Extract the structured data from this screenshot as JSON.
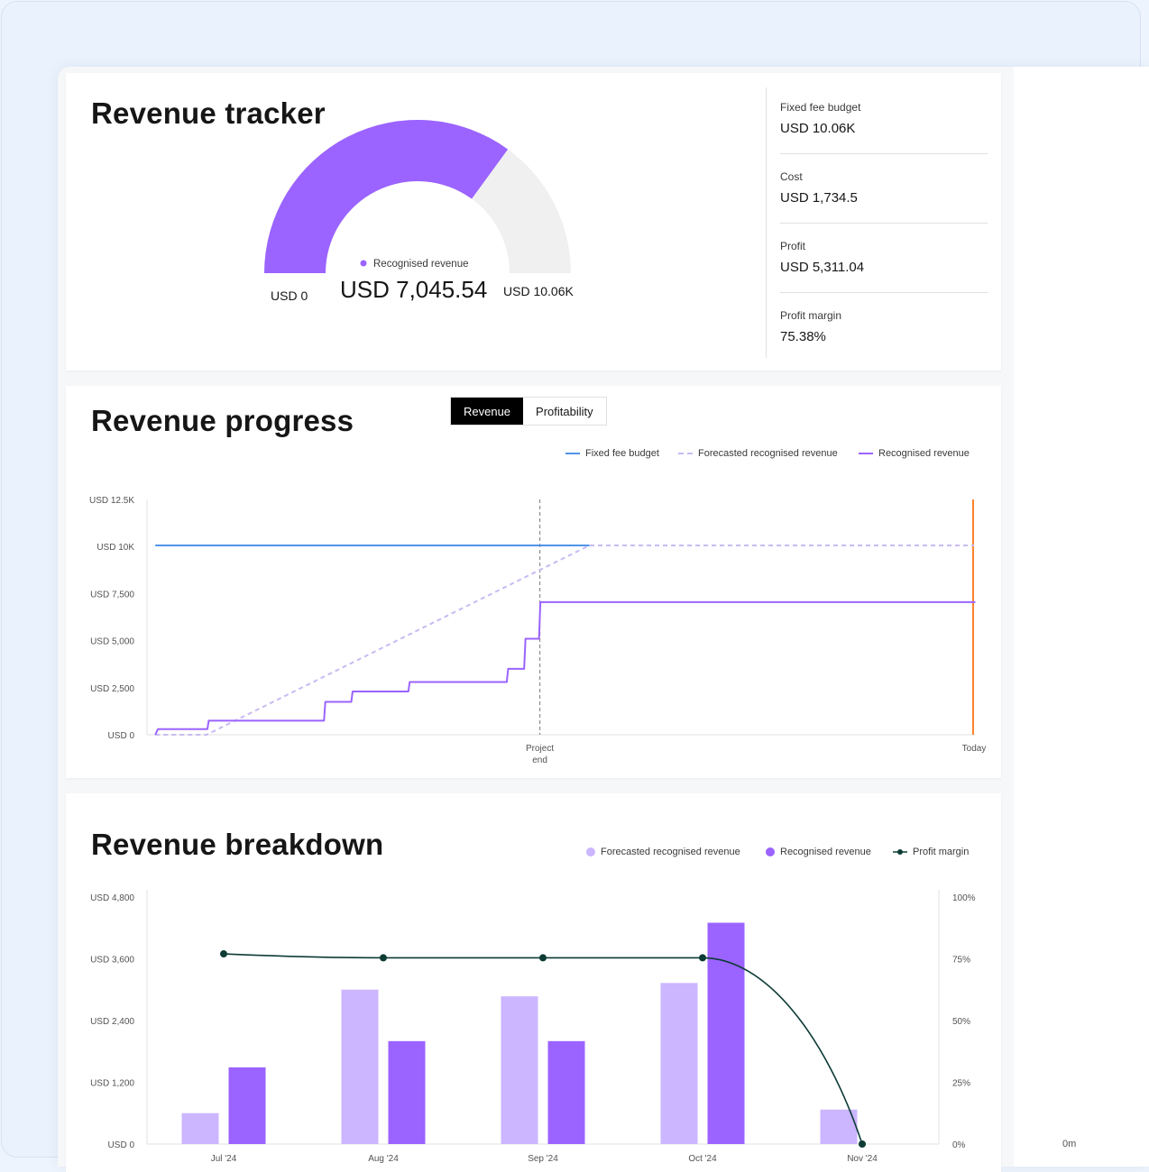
{
  "colors": {
    "accent_purple": "#9b63ff",
    "light_purple": "#cbb6ff",
    "forecast_dash": "#c9baf2",
    "budget_blue": "#4f94e8",
    "today_orange": "#ff832b",
    "profit_green": "#0d3b36",
    "track_grey": "#f0f0f0"
  },
  "tracker": {
    "title": "Revenue tracker",
    "fraction": 0.7004,
    "legend_label": "Recognised revenue",
    "value": "USD 7,045.54",
    "min_label": "USD 0",
    "max_label": "USD 10.06K",
    "stats": [
      {
        "label": "Fixed fee budget",
        "value": "USD 10.06K"
      },
      {
        "label": "Cost",
        "value": "USD 1,734.5"
      },
      {
        "label": "Profit",
        "value": "USD 5,311.04"
      },
      {
        "label": "Profit margin",
        "value": "75.38%"
      }
    ]
  },
  "progress": {
    "title": "Revenue progress",
    "tabs": [
      "Revenue",
      "Profitability"
    ],
    "active_tab": "Revenue",
    "legend": [
      "Fixed fee budget",
      "Forecasted recognised revenue",
      "Recognised revenue"
    ],
    "y_ticks": [
      "USD 12.5K",
      "USD 10K",
      "USD 7,500",
      "USD 5,000",
      "USD 2,500",
      "USD 0"
    ],
    "markers": {
      "project_end_line1": "Project",
      "project_end_line2": "end",
      "today": "Today"
    }
  },
  "breakdown": {
    "title": "Revenue breakdown",
    "legend": [
      "Forecasted recognised revenue",
      "Recognised revenue",
      "Profit margin"
    ],
    "y_ticks_left": [
      "USD 4,800",
      "USD 3,600",
      "USD 2,400",
      "USD 1,200",
      "USD 0"
    ],
    "y_ticks_right": [
      "100%",
      "75%",
      "50%",
      "25%",
      "0%"
    ]
  },
  "side": {
    "value": "0m"
  },
  "chart_data": [
    {
      "type": "line",
      "title": "Revenue progress",
      "ylim": [
        0,
        12500
      ],
      "xlim": [
        0,
        100
      ],
      "x_markers": [
        {
          "label": "Project end",
          "x": 47.5
        },
        {
          "label": "Today",
          "x": 100
        }
      ],
      "series": [
        {
          "name": "Fixed fee budget",
          "style": "solid",
          "x": [
            1,
            53.5
          ],
          "values": [
            10060,
            10060
          ]
        },
        {
          "name": "Forecasted recognised revenue",
          "style": "dashed",
          "x": [
            1,
            7.2,
            53.5,
            100
          ],
          "values": [
            0,
            0,
            10060,
            10060
          ]
        },
        {
          "name": "Recognised revenue",
          "style": "step",
          "x": [
            1,
            7.3,
            21.4,
            24.7,
            31.6,
            43.5,
            45.6,
            47.4,
            100
          ],
          "values": [
            300,
            750,
            1750,
            2300,
            2800,
            3500,
            5100,
            7045.54,
            7045.54
          ]
        }
      ]
    },
    {
      "type": "bar",
      "title": "Revenue breakdown",
      "categories": [
        "Jul '24",
        "Aug '24",
        "Sep '24",
        "Oct '24",
        "Nov '24"
      ],
      "ylim": [
        0,
        4800
      ],
      "y2lim": [
        0,
        100
      ],
      "series": [
        {
          "name": "Forecasted recognised revenue",
          "values": [
            600,
            3000,
            2870,
            3130,
            670
          ]
        },
        {
          "name": "Recognised revenue",
          "values": [
            1490,
            2000,
            2000,
            4300,
            0
          ]
        },
        {
          "name": "Profit margin",
          "type": "line",
          "axis": "right",
          "values": [
            77,
            75.4,
            75.4,
            75.4,
            0
          ]
        }
      ]
    }
  ]
}
